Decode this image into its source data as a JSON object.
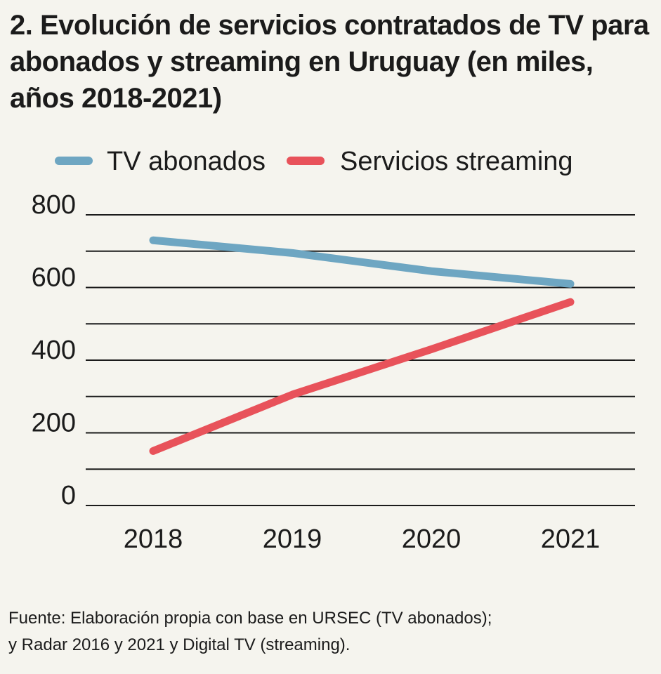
{
  "title": "2. Evolución de servicios contratados de TV para abonados y streaming en Uruguay (en miles, años 2018-2021)",
  "source": {
    "line1": "Fuente: Elaboración propia con base en URSEC (TV abonados);",
    "line2": "y Radar 2016 y 2021 y Digital TV (streaming)."
  },
  "colors": {
    "background": "#f5f4ee",
    "tv": "#6ea6c2",
    "streaming": "#e8525a",
    "grid": "#1b1b1b"
  },
  "chart_data": {
    "type": "line",
    "title": "2. Evolución de servicios contratados de TV para abonados y streaming en Uruguay (en miles, años 2018-2021)",
    "xlabel": "",
    "ylabel": "",
    "x": [
      "2018",
      "2019",
      "2020",
      "2021"
    ],
    "ylim": [
      0,
      800
    ],
    "yticks": [
      0,
      200,
      400,
      600,
      800
    ],
    "grid": true,
    "legend_position": "top",
    "series": [
      {
        "name": "TV abonados",
        "color": "#6ea6c2",
        "values": [
          730,
          695,
          645,
          610
        ]
      },
      {
        "name": "Servicios streaming",
        "color": "#e8525a",
        "values": [
          150,
          305,
          430,
          560
        ]
      }
    ]
  }
}
